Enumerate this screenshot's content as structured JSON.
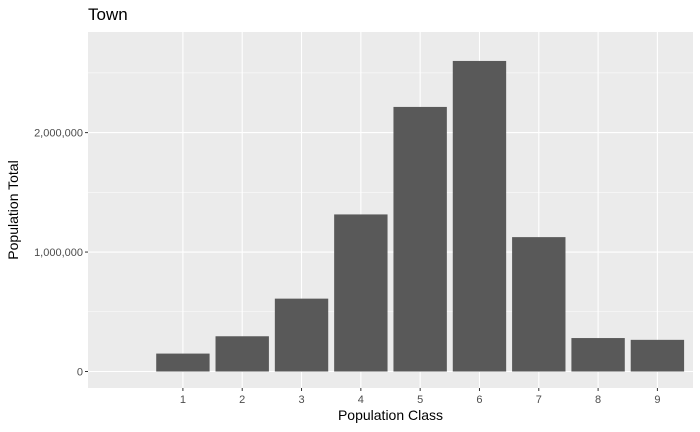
{
  "chart_data": {
    "type": "bar",
    "title": "Town",
    "xlabel": "Population Class",
    "ylabel": "Population Total",
    "categories": [
      "1",
      "2",
      "3",
      "4",
      "5",
      "6",
      "7",
      "8",
      "9"
    ],
    "values": [
      150000,
      295000,
      610000,
      1315000,
      2215000,
      2600000,
      1125000,
      280000,
      265000
    ],
    "ylim": [
      0,
      2700000
    ],
    "yticks": [
      0,
      1000000,
      2000000
    ],
    "ytick_labels": [
      "0",
      "1,000,000",
      "2,000,000"
    ],
    "grid": true,
    "legend": "none",
    "colors": {
      "bar": "#595959",
      "panel_background": "#ebebeb",
      "grid_major": "#ffffff"
    }
  }
}
